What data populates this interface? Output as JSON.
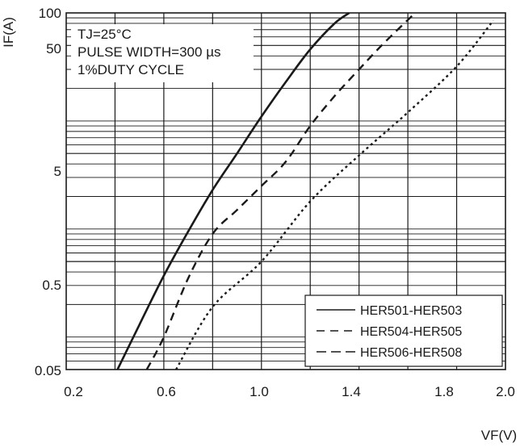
{
  "chart_data": {
    "type": "line",
    "xlabel": "VF(V)",
    "ylabel": "IF(A)",
    "xlim": [
      0.2,
      2.0
    ],
    "ylim": [
      0.05,
      100
    ],
    "yscale": "log",
    "grid": true,
    "x_ticks": [
      "0.2",
      "0.6",
      "1.0",
      "1.4",
      "1.8",
      "2.0"
    ],
    "y_ticks": [
      "0.05",
      "0.5",
      "5",
      "50",
      "100"
    ],
    "conditions": [
      "TJ=25°C",
      "PULSE WIDTH=300 µs",
      "1%DUTY CYCLE"
    ],
    "legend_position": "bottom-right",
    "series": [
      {
        "name": "HER501-HER503",
        "style": "solid",
        "x": [
          0.41,
          0.5,
          0.6,
          0.7,
          0.8,
          0.9,
          1.0,
          1.1,
          1.2,
          1.3,
          1.36
        ],
        "y": [
          0.05,
          0.13,
          0.37,
          0.95,
          2.3,
          5.0,
          11,
          23,
          46,
          80,
          100
        ]
      },
      {
        "name": "HER504-HER505",
        "style": "dashed",
        "x": [
          0.53,
          0.6,
          0.7,
          0.8,
          0.9,
          1.0,
          1.1,
          1.2,
          1.3,
          1.4,
          1.5,
          1.63
        ],
        "y": [
          0.05,
          0.1,
          0.35,
          0.9,
          1.5,
          2.5,
          4.2,
          9.0,
          17,
          30,
          52,
          100
        ]
      },
      {
        "name": "HER506-HER508",
        "style": "dotted",
        "x": [
          0.65,
          0.8,
          1.0,
          1.2,
          1.4,
          1.6,
          1.8,
          1.95
        ],
        "y": [
          0.05,
          0.19,
          0.5,
          1.8,
          4.8,
          12,
          32,
          85
        ]
      }
    ]
  }
}
